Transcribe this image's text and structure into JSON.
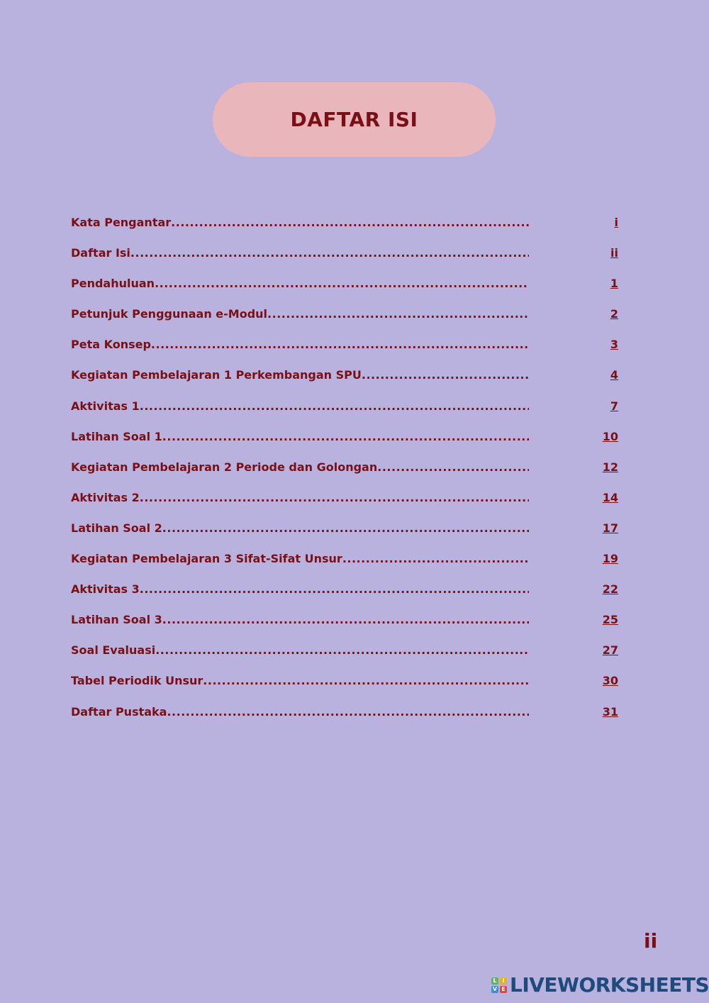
{
  "title": "DAFTAR ISI",
  "entries": [
    {
      "label": "Kata Pengantar",
      "page": "i"
    },
    {
      "label": "Daftar Isi",
      "page": "ii"
    },
    {
      "label": "Pendahuluan",
      "page": "1"
    },
    {
      "label": "Petunjuk Penggunaan e-Modul",
      "page": "2"
    },
    {
      "label": "Peta Konsep",
      "page": "3"
    },
    {
      "label": "Kegiatan Pembelajaran 1 Perkembangan SPU",
      "page": "4"
    },
    {
      "label": "Aktivitas 1",
      "page": "7"
    },
    {
      "label": "Latihan Soal 1",
      "page": "10"
    },
    {
      "label": "Kegiatan Pembelajaran 2 Periode dan Golongan",
      "page": "12"
    },
    {
      "label": "Aktivitas 2",
      "page": "14"
    },
    {
      "label": "Latihan Soal 2",
      "page": "17"
    },
    {
      "label": "Kegiatan Pembelajaran 3 Sifat-Sifat Unsur",
      "page": "19"
    },
    {
      "label": "Aktivitas 3",
      "page": "22"
    },
    {
      "label": "Latihan Soal 3",
      "page": "25"
    },
    {
      "label": "Soal Evaluasi",
      "page": "27"
    },
    {
      "label": "Tabel Periodik Unsur",
      "page": "30"
    },
    {
      "label": "Daftar Pustaka",
      "page": "31"
    }
  ],
  "page_number": "ii",
  "logo": {
    "text": "LIVEWORKSHEETS",
    "blocks": [
      "L",
      "I",
      "V",
      "E"
    ]
  },
  "colors": {
    "background": "#b9b2df",
    "text": "#7a1016",
    "title_pill": "#e8b6bb",
    "logo": "#1f4a7c"
  }
}
